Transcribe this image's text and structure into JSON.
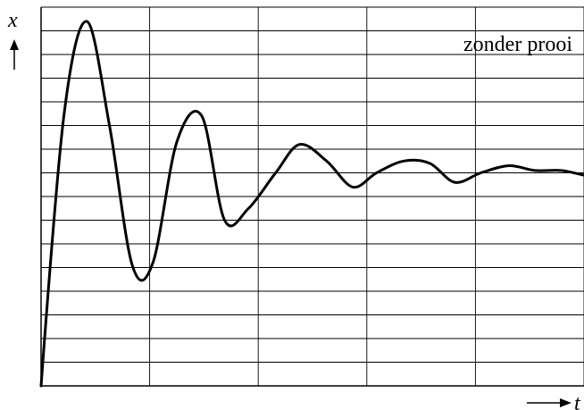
{
  "chart_data": {
    "type": "line",
    "xlabel": "t",
    "ylabel": "x",
    "annotations": [
      "zonder prooi"
    ],
    "grid": true,
    "xlim": [
      0,
      5
    ],
    "ylim": [
      0,
      16
    ],
    "series": [
      {
        "x": [
          0,
          0.21,
          0.42,
          0.63,
          0.84,
          1.03,
          1.25,
          1.48,
          1.69,
          1.91,
          2.16,
          2.38,
          2.63,
          2.87,
          3.09,
          3.34,
          3.58,
          3.81,
          4.05,
          4.31,
          4.55,
          4.79,
          5.0
        ],
        "values": [
          0,
          11.4,
          15.4,
          11.0,
          5.1,
          5.2,
          10.3,
          11.4,
          7.0,
          7.5,
          9.0,
          10.2,
          9.5,
          8.4,
          9.0,
          9.5,
          9.4,
          8.6,
          9.0,
          9.3,
          9.1,
          9.1,
          8.9
        ]
      }
    ],
    "line_color": "#000000",
    "grid_color": "#000000"
  }
}
